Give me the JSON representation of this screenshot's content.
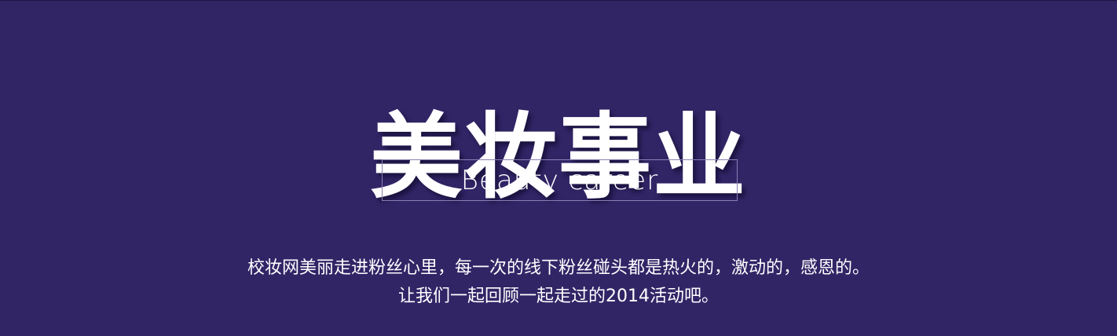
{
  "banner": {
    "title": "美妆事业",
    "subtitle": "Beauty career",
    "description_lines": [
      "校妆网美丽走进粉丝心里，每一次的线下粉丝碰头都是热火的，激动的，感恩的。",
      "让我们一起回顾一起走过的2014活动吧。"
    ],
    "colors": {
      "background": "#322566",
      "text": "#ffffff",
      "subtitle_border": "#8a80b4"
    }
  }
}
